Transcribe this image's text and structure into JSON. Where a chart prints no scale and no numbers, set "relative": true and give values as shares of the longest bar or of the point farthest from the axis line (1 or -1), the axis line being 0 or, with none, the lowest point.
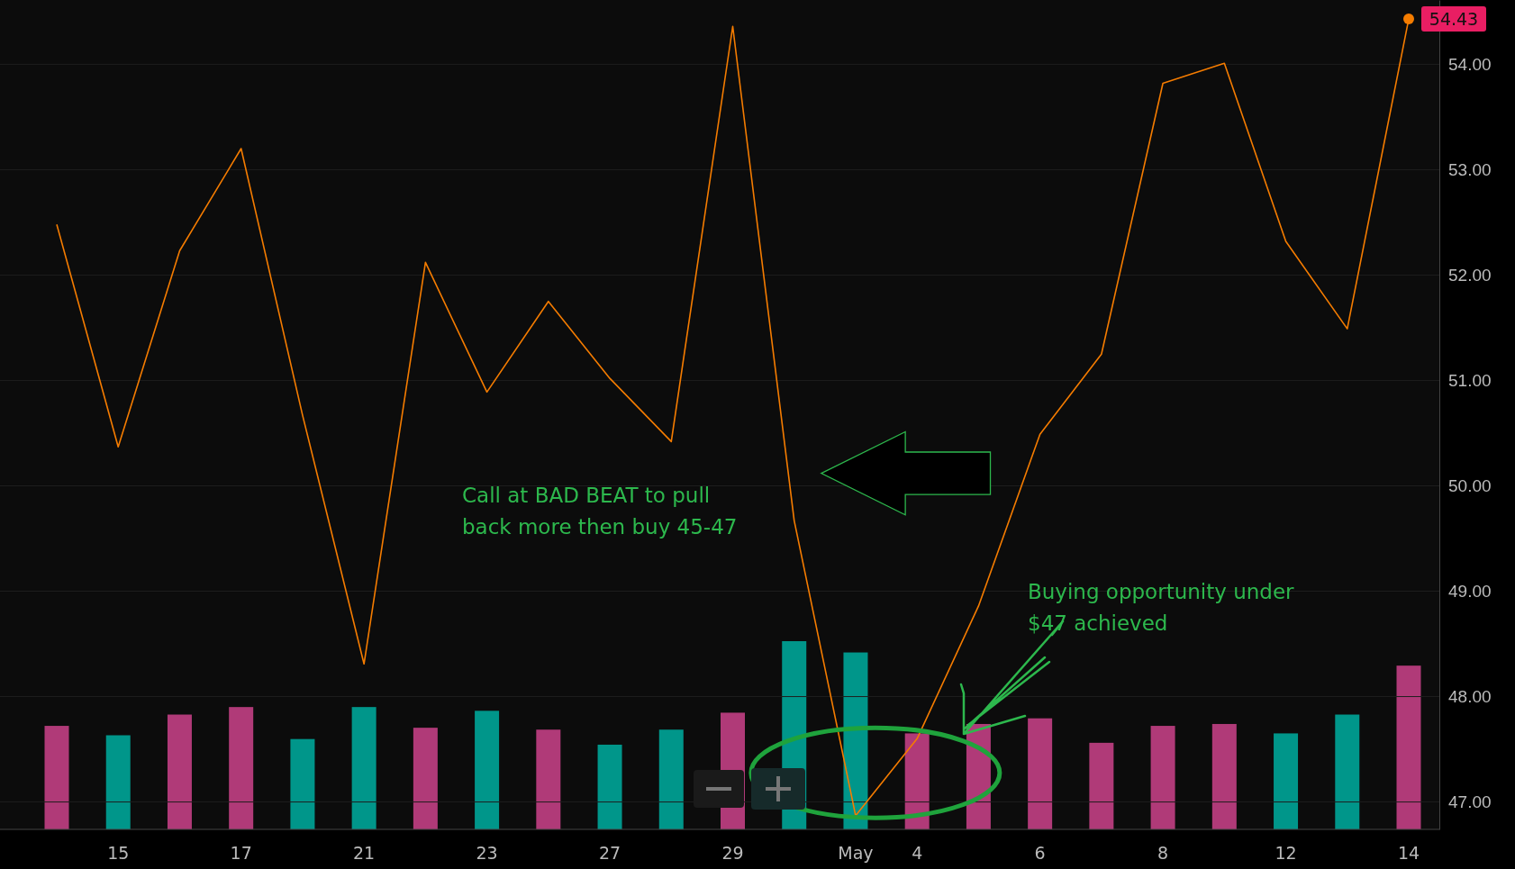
{
  "chart_data": [
    {
      "type": "line",
      "categories": [
        null,
        "15",
        null,
        "17",
        null,
        "21",
        null,
        "23",
        null,
        "27",
        null,
        "29",
        null,
        "May",
        "4",
        null,
        "6",
        null,
        "8",
        null,
        "12",
        null,
        "14"
      ],
      "series": [
        {
          "color": "#f57c00",
          "values": [
            52.48,
            50.37,
            52.23,
            53.2,
            50.67,
            48.31,
            52.12,
            50.89,
            51.75,
            51.02,
            50.42,
            54.36,
            49.67,
            46.87,
            47.6,
            48.86,
            50.49,
            51.25,
            53.82,
            54.01,
            52.32,
            51.49,
            54.43
          ],
          "value_labels": [
            null,
            null,
            null,
            null,
            null,
            null,
            null,
            null,
            null,
            null,
            null,
            null,
            null,
            null,
            null,
            null,
            null,
            null,
            null,
            null,
            null,
            null,
            "54.43"
          ]
        }
      ],
      "ylim": [
        46.74,
        54.61
      ],
      "yticks": [
        {
          "value": 47,
          "label": "47.00"
        },
        {
          "value": 48,
          "label": "48.00"
        },
        {
          "value": 49,
          "label": "49.00"
        },
        {
          "value": 50,
          "label": "50.00"
        },
        {
          "value": 51,
          "label": "51.00"
        },
        {
          "value": 52,
          "label": "52.00"
        },
        {
          "value": 53,
          "label": "53.00"
        },
        {
          "value": 54,
          "label": "54.00"
        }
      ],
      "grid": "y",
      "line_style": "solid",
      "annotations": [
        "Call at BAD BEAT to pull back more then buy 45-47",
        "Buying opportunity under $47 achieved"
      ]
    },
    {
      "type": "bar",
      "relative": true,
      "tick_labels": false,
      "categories": [
        null,
        null,
        null,
        null,
        null,
        null,
        null,
        null,
        null,
        null,
        null,
        null,
        null,
        null,
        null,
        null,
        null,
        null,
        null,
        null,
        null,
        null,
        null
      ],
      "values": [
        0.55,
        0.5,
        0.61,
        0.65,
        0.48,
        0.65,
        0.54,
        0.63,
        0.53,
        0.45,
        0.53,
        0.62,
        1,
        0.94,
        0.51,
        0.56,
        0.59,
        0.46,
        0.55,
        0.56,
        0.51,
        0.61,
        0.87
      ],
      "colors": [
        "#b03a78",
        "#00968a",
        "#b03a78",
        "#b03a78",
        "#00968a",
        "#00968a",
        "#b03a78",
        "#00968a",
        "#b03a78",
        "#00968a",
        "#00968a",
        "#b03a78",
        "#00968a",
        "#00968a",
        "#b03a78",
        "#b03a78",
        "#b03a78",
        "#b03a78",
        "#b03a78",
        "#b03a78",
        "#00968a",
        "#00968a",
        "#b03a78"
      ]
    }
  ]
}
